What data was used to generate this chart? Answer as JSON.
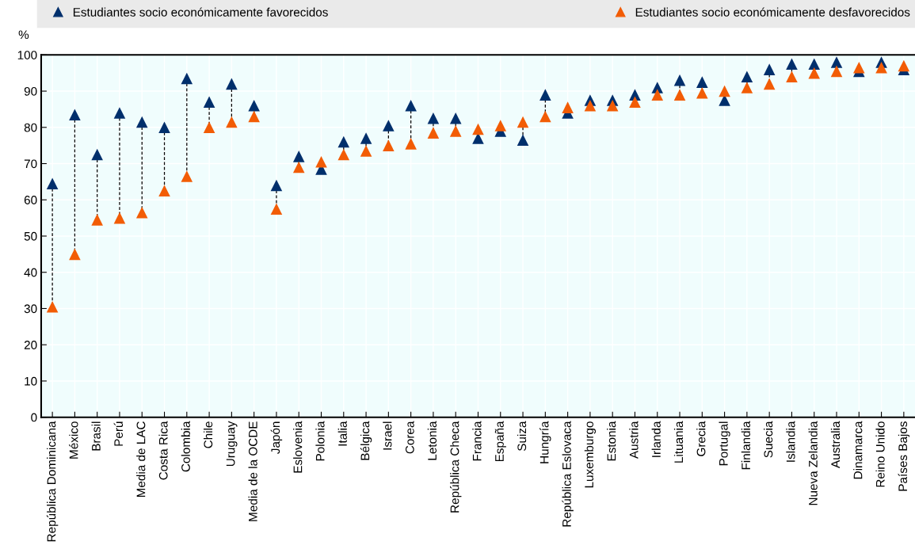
{
  "chart_data": {
    "type": "scatter",
    "ylabel": "%",
    "categories": [
      "República Dominicana",
      "México",
      "Brasil",
      "Perú",
      "Media de LAC",
      "Costa Rica",
      "Colombia",
      "Chile",
      "Uruguay",
      "Media de la OCDE",
      "Japón",
      "Eslovenia",
      "Polonia",
      "Italia",
      "Bélgica",
      "Israel",
      "Corea",
      "Letonia",
      "República Checa",
      "Francia",
      "España",
      "Suiza",
      "Hungría",
      "República Eslovaca",
      "Luxemburgo",
      "Estonia",
      "Austria",
      "Irlanda",
      "Lituania",
      "Grecia",
      "Portugal",
      "Finlandia",
      "Suecia",
      "Islandia",
      "Nueva Zelandia",
      "Australia",
      "Dinamarca",
      "Reino Unido",
      "Países Bajos"
    ],
    "series": [
      {
        "name": "Estudiantes socio económicamente favorecidos",
        "color": "#002f6c",
        "values": [
          64.5,
          83.5,
          72.5,
          84,
          81.5,
          80,
          93.5,
          87,
          92,
          86,
          64,
          72,
          68.5,
          76,
          77,
          80.5,
          86,
          82.5,
          82.5,
          77,
          79,
          76.5,
          89,
          84,
          87.5,
          87.5,
          89,
          91,
          93,
          92.5,
          87.5,
          94,
          96,
          97.5,
          97.5,
          98,
          95.5,
          98,
          96
        ]
      },
      {
        "name": "Estudiantes socio económicamente desfavorecidos",
        "color": "#f25c05",
        "values": [
          30.5,
          45,
          54.5,
          55,
          56.5,
          62.5,
          66.5,
          80,
          81.5,
          83,
          57.5,
          69,
          70.5,
          72.5,
          73.5,
          75,
          75.5,
          78.5,
          79,
          79.5,
          80.5,
          81.5,
          83,
          85.5,
          86,
          86,
          87,
          89,
          89,
          89.5,
          90,
          91,
          92,
          94,
          95,
          95.5,
          96.5,
          96.5,
          97
        ]
      }
    ],
    "ylim": [
      0,
      100
    ],
    "yticks": [
      0,
      10,
      20,
      30,
      40,
      50,
      60,
      70,
      80,
      90,
      100
    ],
    "marker": "triangle",
    "grid": true,
    "legend": "top"
  }
}
